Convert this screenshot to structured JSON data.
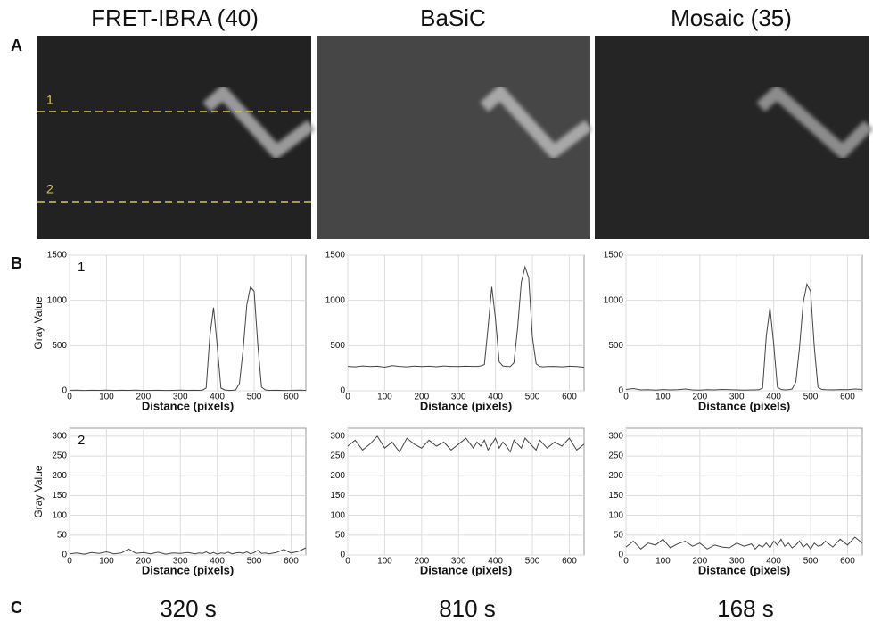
{
  "columns": [
    "FRET-IBRA (40)",
    "BaSiC",
    "Mosaic (35)"
  ],
  "panels": [
    "A",
    "B",
    "C"
  ],
  "profile_lines": [
    "1",
    "2"
  ],
  "times": [
    "320 s",
    "810 s",
    "168 s"
  ],
  "chart_data": [
    {
      "type": "line",
      "annotation": "1",
      "xlabel": "Distance (pixels)",
      "ylabel": "Gray Value",
      "color": "#444444",
      "grid": true,
      "xlim": [
        0,
        640
      ],
      "ylim": [
        0,
        1500
      ],
      "xticks": [
        0,
        100,
        200,
        300,
        400,
        500,
        600
      ],
      "yticks": [
        0,
        500,
        1000,
        1500
      ],
      "x": [
        0,
        20,
        40,
        60,
        80,
        100,
        120,
        140,
        160,
        180,
        200,
        220,
        240,
        260,
        280,
        300,
        320,
        340,
        350,
        360,
        370,
        380,
        390,
        400,
        410,
        420,
        430,
        440,
        450,
        460,
        470,
        480,
        490,
        500,
        510,
        520,
        530,
        540,
        560,
        580,
        600,
        620,
        640
      ],
      "values": [
        5,
        8,
        4,
        6,
        5,
        7,
        4,
        6,
        5,
        8,
        4,
        5,
        6,
        4,
        5,
        7,
        5,
        6,
        5,
        8,
        30,
        600,
        920,
        500,
        30,
        10,
        5,
        5,
        10,
        80,
        450,
        950,
        1150,
        1100,
        500,
        40,
        10,
        5,
        6,
        4,
        5,
        8,
        5
      ]
    },
    {
      "type": "line",
      "xlabel": "Distance (pixels)",
      "color": "#444444",
      "grid": true,
      "xlim": [
        0,
        640
      ],
      "ylim": [
        0,
        1500
      ],
      "xticks": [
        0,
        100,
        200,
        300,
        400,
        500,
        600
      ],
      "yticks": [
        0,
        500,
        1000,
        1500
      ],
      "x": [
        0,
        20,
        40,
        60,
        80,
        100,
        120,
        140,
        160,
        180,
        200,
        220,
        240,
        260,
        280,
        300,
        320,
        340,
        350,
        360,
        370,
        380,
        390,
        400,
        410,
        420,
        430,
        440,
        450,
        460,
        470,
        480,
        490,
        500,
        510,
        520,
        530,
        540,
        560,
        580,
        600,
        620,
        640
      ],
      "values": [
        270,
        265,
        275,
        268,
        272,
        262,
        278,
        270,
        265,
        274,
        268,
        272,
        266,
        275,
        270,
        268,
        272,
        270,
        270,
        275,
        290,
        700,
        1150,
        800,
        320,
        275,
        270,
        268,
        310,
        700,
        1200,
        1370,
        1250,
        600,
        300,
        270,
        265,
        268,
        270,
        265,
        272,
        268,
        262
      ]
    },
    {
      "type": "line",
      "xlabel": "Distance (pixels)",
      "color": "#444444",
      "grid": true,
      "xlim": [
        0,
        640
      ],
      "ylim": [
        0,
        1500
      ],
      "xticks": [
        0,
        100,
        200,
        300,
        400,
        500,
        600
      ],
      "yticks": [
        0,
        500,
        1000,
        1500
      ],
      "x": [
        0,
        20,
        40,
        60,
        80,
        100,
        120,
        140,
        160,
        180,
        200,
        220,
        240,
        260,
        280,
        300,
        320,
        340,
        350,
        360,
        370,
        380,
        390,
        400,
        410,
        420,
        430,
        440,
        450,
        460,
        470,
        480,
        490,
        500,
        510,
        520,
        530,
        540,
        560,
        580,
        600,
        620,
        640
      ],
      "values": [
        15,
        25,
        10,
        12,
        8,
        14,
        10,
        12,
        20,
        10,
        8,
        12,
        10,
        15,
        12,
        10,
        8,
        10,
        10,
        12,
        30,
        600,
        920,
        520,
        40,
        15,
        10,
        12,
        20,
        100,
        480,
        980,
        1180,
        1100,
        480,
        40,
        15,
        12,
        10,
        14,
        12,
        20,
        15
      ]
    },
    {
      "type": "line",
      "annotation": "2",
      "xlabel": "Distance (pixels)",
      "ylabel": "Gray Value",
      "color": "#444444",
      "grid": true,
      "xlim": [
        0,
        640
      ],
      "ylim": [
        0,
        320
      ],
      "xticks": [
        0,
        100,
        200,
        300,
        400,
        500,
        600
      ],
      "yticks": [
        0,
        50,
        100,
        150,
        200,
        250,
        300
      ],
      "x": [
        0,
        20,
        40,
        60,
        80,
        100,
        120,
        140,
        160,
        180,
        200,
        220,
        240,
        260,
        280,
        300,
        320,
        340,
        350,
        360,
        370,
        380,
        390,
        400,
        410,
        420,
        430,
        440,
        450,
        460,
        470,
        480,
        490,
        500,
        510,
        520,
        530,
        540,
        560,
        580,
        600,
        620,
        640
      ],
      "values": [
        3,
        5,
        2,
        6,
        4,
        8,
        3,
        5,
        15,
        4,
        6,
        3,
        7,
        2,
        5,
        4,
        6,
        3,
        5,
        4,
        8,
        3,
        6,
        2,
        5,
        4,
        7,
        3,
        5,
        6,
        4,
        8,
        3,
        6,
        12,
        4,
        5,
        3,
        6,
        14,
        5,
        9,
        18
      ]
    },
    {
      "type": "line",
      "xlabel": "Distance (pixels)",
      "color": "#444444",
      "grid": true,
      "xlim": [
        0,
        640
      ],
      "ylim": [
        0,
        320
      ],
      "xticks": [
        0,
        100,
        200,
        300,
        400,
        500,
        600
      ],
      "yticks": [
        0,
        50,
        100,
        150,
        200,
        250,
        300
      ],
      "x": [
        0,
        20,
        40,
        60,
        80,
        100,
        120,
        140,
        160,
        180,
        200,
        220,
        240,
        260,
        280,
        300,
        320,
        340,
        350,
        360,
        370,
        380,
        390,
        400,
        410,
        420,
        430,
        440,
        450,
        460,
        470,
        480,
        490,
        500,
        510,
        520,
        530,
        540,
        560,
        580,
        600,
        620,
        640
      ],
      "values": [
        275,
        290,
        265,
        280,
        300,
        270,
        285,
        260,
        295,
        280,
        270,
        290,
        275,
        285,
        265,
        280,
        295,
        270,
        285,
        275,
        290,
        265,
        280,
        295,
        270,
        285,
        275,
        260,
        290,
        280,
        270,
        295,
        285,
        275,
        265,
        290,
        280,
        270,
        285,
        275,
        295,
        265,
        280
      ]
    },
    {
      "type": "line",
      "xlabel": "Distance (pixels)",
      "color": "#444444",
      "grid": true,
      "xlim": [
        0,
        640
      ],
      "ylim": [
        0,
        320
      ],
      "xticks": [
        0,
        100,
        200,
        300,
        400,
        500,
        600
      ],
      "yticks": [
        0,
        50,
        100,
        150,
        200,
        250,
        300
      ],
      "x": [
        0,
        20,
        40,
        60,
        80,
        100,
        120,
        140,
        160,
        180,
        200,
        220,
        240,
        260,
        280,
        300,
        320,
        340,
        350,
        360,
        370,
        380,
        390,
        400,
        410,
        420,
        430,
        440,
        450,
        460,
        470,
        480,
        490,
        500,
        510,
        520,
        530,
        540,
        560,
        580,
        600,
        620,
        640
      ],
      "values": [
        20,
        35,
        15,
        30,
        25,
        40,
        18,
        28,
        35,
        22,
        30,
        15,
        25,
        20,
        18,
        30,
        22,
        28,
        15,
        25,
        20,
        30,
        18,
        35,
        25,
        40,
        22,
        30,
        18,
        25,
        35,
        20,
        28,
        15,
        30,
        22,
        25,
        35,
        20,
        40,
        25,
        45,
        30
      ]
    }
  ]
}
